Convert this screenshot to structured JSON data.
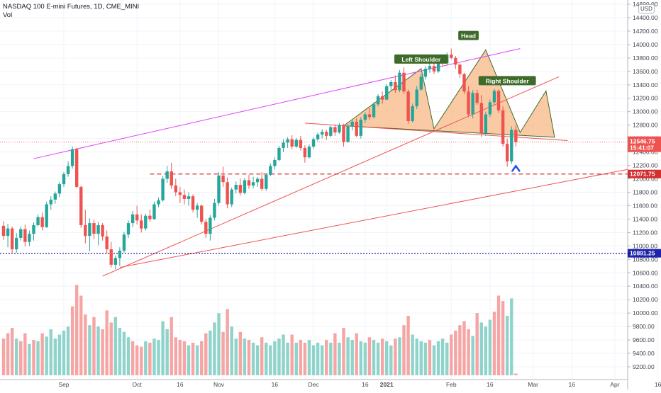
{
  "header": {
    "title": "NASDAQ 100 E-mini Futures, 1D, CME_MINI",
    "volume_label": "Vol",
    "currency": "USD"
  },
  "chart_data": {
    "type": "candlestick",
    "title": "NASDAQ 100 E-mini Futures, 1D, CME_MINI",
    "price_axis": {
      "ticks": [
        9200,
        9400,
        9600,
        9800,
        10000,
        10200,
        10400,
        10600,
        10800,
        11000,
        11200,
        11400,
        11600,
        11800,
        12000,
        12200,
        12400,
        12600,
        12800,
        13000,
        13200,
        13400,
        13600,
        13800,
        14000,
        14200,
        14400,
        14600
      ],
      "top_label": "14600.00"
    },
    "x_ticks": [
      {
        "label": "Sep",
        "bold": false
      },
      {
        "label": "Oct",
        "bold": false
      },
      {
        "label": "16",
        "bold": false
      },
      {
        "label": "Nov",
        "bold": false
      },
      {
        "label": "16",
        "bold": false
      },
      {
        "label": "Dec",
        "bold": false
      },
      {
        "label": "16",
        "bold": false
      },
      {
        "label": "2021",
        "bold": true
      },
      {
        "label": "Feb",
        "bold": false
      },
      {
        "label": "16",
        "bold": false
      },
      {
        "label": "Mar",
        "bold": false
      },
      {
        "label": "16",
        "bold": false
      },
      {
        "label": "Apr",
        "bold": false
      },
      {
        "label": "16",
        "bold": false
      }
    ],
    "price_labels": [
      {
        "text": "12546.75",
        "countdown": "15:41:07",
        "color": "#ef5350"
      },
      {
        "text": "12071.75",
        "color": "#d32f2f"
      },
      {
        "text": "10891.25",
        "color": "#1e22aa"
      }
    ],
    "levels": {
      "support_dashed": 12071.75,
      "dotted_blue": 10891.25
    },
    "pattern_labels": [
      "Left Shoulder",
      "Head",
      "Right Shoulder"
    ],
    "colors": {
      "up": "#26a69a",
      "down": "#ef5350",
      "vol_up": "#8fd3ca",
      "vol_down": "#f5a5a4",
      "pattern_fill": "#f7b886",
      "label_bg": "#3f6b2a",
      "trend_top": "#e040fb",
      "trend_red": "#ef5350"
    },
    "candles": [
      [
        11300,
        11370,
        11090,
        11150
      ],
      [
        11150,
        11330,
        10980,
        11260
      ],
      [
        11260,
        11290,
        10890,
        10950
      ],
      [
        10950,
        11190,
        10900,
        11120
      ],
      [
        11120,
        11290,
        11080,
        11250
      ],
      [
        11250,
        11320,
        10990,
        11060
      ],
      [
        11060,
        11230,
        11000,
        11180
      ],
      [
        11180,
        11350,
        11080,
        11310
      ],
      [
        11310,
        11470,
        11290,
        11430
      ],
      [
        11430,
        11500,
        11230,
        11280
      ],
      [
        11280,
        11660,
        11270,
        11620
      ],
      [
        11620,
        11740,
        11540,
        11690
      ],
      [
        11690,
        11810,
        11630,
        11780
      ],
      [
        11780,
        11950,
        11730,
        11920
      ],
      [
        11920,
        12100,
        11880,
        12070
      ],
      [
        12070,
        12260,
        12030,
        12190
      ],
      [
        12190,
        12480,
        12150,
        12440
      ],
      [
        12440,
        12460,
        11860,
        11880
      ],
      [
        11880,
        11900,
        11270,
        11310
      ],
      [
        11310,
        11540,
        11040,
        11150
      ],
      [
        11150,
        11410,
        10920,
        11340
      ],
      [
        11340,
        11390,
        11100,
        11180
      ],
      [
        11180,
        11360,
        11010,
        11310
      ],
      [
        11310,
        11340,
        11080,
        11140
      ],
      [
        11140,
        11230,
        10890,
        10950
      ],
      [
        10950,
        11060,
        10680,
        10720
      ],
      [
        10720,
        10860,
        10650,
        10820
      ],
      [
        10820,
        10980,
        10700,
        10930
      ],
      [
        10930,
        11210,
        10900,
        11170
      ],
      [
        11170,
        11380,
        11120,
        11340
      ],
      [
        11340,
        11520,
        11280,
        11470
      ],
      [
        11470,
        11600,
        11320,
        11380
      ],
      [
        11380,
        11470,
        11200,
        11260
      ],
      [
        11260,
        11480,
        11230,
        11450
      ],
      [
        11450,
        11540,
        11360,
        11400
      ],
      [
        11400,
        11660,
        11390,
        11620
      ],
      [
        11620,
        11720,
        11580,
        11680
      ],
      [
        11680,
        12040,
        11660,
        12000
      ],
      [
        12000,
        12190,
        11940,
        12110
      ],
      [
        12110,
        12240,
        11850,
        11900
      ],
      [
        11900,
        12000,
        11740,
        11800
      ],
      [
        11800,
        11880,
        11640,
        11760
      ],
      [
        11760,
        11840,
        11620,
        11700
      ],
      [
        11700,
        11800,
        11600,
        11740
      ],
      [
        11740,
        11770,
        11500,
        11540
      ],
      [
        11540,
        11640,
        11420,
        11600
      ],
      [
        11600,
        11620,
        11320,
        11360
      ],
      [
        11360,
        11400,
        11120,
        11180
      ],
      [
        11180,
        11460,
        11080,
        11420
      ],
      [
        11420,
        11700,
        11380,
        11640
      ],
      [
        11640,
        12100,
        11600,
        12050
      ],
      [
        12050,
        12180,
        11880,
        11950
      ],
      [
        11950,
        12020,
        11560,
        11620
      ],
      [
        11620,
        11870,
        11580,
        11840
      ],
      [
        11840,
        11960,
        11780,
        11910
      ],
      [
        11910,
        12000,
        11750,
        11790
      ],
      [
        11790,
        12010,
        11770,
        11980
      ],
      [
        11980,
        12060,
        11850,
        11900
      ],
      [
        11900,
        12030,
        11860,
        11950
      ],
      [
        11950,
        12030,
        11880,
        12000
      ],
      [
        12000,
        12100,
        11820,
        11850
      ],
      [
        11850,
        12080,
        11820,
        12060
      ],
      [
        12060,
        12230,
        12040,
        12190
      ],
      [
        12190,
        12320,
        12140,
        12280
      ],
      [
        12280,
        12490,
        12260,
        12460
      ],
      [
        12460,
        12590,
        12400,
        12540
      ],
      [
        12540,
        12620,
        12460,
        12590
      ],
      [
        12590,
        12650,
        12440,
        12480
      ],
      [
        12480,
        12610,
        12460,
        12580
      ],
      [
        12580,
        12640,
        12420,
        12460
      ],
      [
        12460,
        12500,
        12240,
        12320
      ],
      [
        12320,
        12510,
        12300,
        12480
      ],
      [
        12480,
        12620,
        12450,
        12590
      ],
      [
        12590,
        12690,
        12560,
        12660
      ],
      [
        12660,
        12740,
        12600,
        12700
      ],
      [
        12700,
        12730,
        12580,
        12640
      ],
      [
        12640,
        12790,
        12620,
        12770
      ],
      [
        12770,
        12810,
        12640,
        12690
      ],
      [
        12690,
        12830,
        12670,
        12800
      ],
      [
        12800,
        12820,
        12480,
        12550
      ],
      [
        12550,
        12820,
        12540,
        12780
      ],
      [
        12780,
        12880,
        12720,
        12850
      ],
      [
        12850,
        12900,
        12620,
        12640
      ],
      [
        12640,
        12920,
        12600,
        12880
      ],
      [
        12880,
        12990,
        12830,
        12960
      ],
      [
        12960,
        13050,
        12880,
        12920
      ],
      [
        12920,
        13140,
        12900,
        13110
      ],
      [
        13110,
        13260,
        13080,
        13230
      ],
      [
        13230,
        13300,
        13120,
        13180
      ],
      [
        13180,
        13410,
        13170,
        13380
      ],
      [
        13380,
        13470,
        13320,
        13440
      ],
      [
        13440,
        13540,
        13280,
        13320
      ],
      [
        13320,
        13620,
        13290,
        13580
      ],
      [
        13580,
        13660,
        13260,
        13300
      ],
      [
        13300,
        13330,
        12820,
        12860
      ],
      [
        12860,
        13120,
        12840,
        13080
      ],
      [
        13080,
        13380,
        13040,
        13330
      ],
      [
        13330,
        13560,
        13310,
        13520
      ],
      [
        13520,
        13680,
        13480,
        13640
      ],
      [
        13640,
        13720,
        13580,
        13680
      ],
      [
        13680,
        13740,
        13560,
        13600
      ],
      [
        13600,
        13780,
        13580,
        13750
      ],
      [
        13750,
        13820,
        13680,
        13720
      ],
      [
        13720,
        13880,
        13700,
        13850
      ],
      [
        13850,
        13940,
        13780,
        13800
      ],
      [
        13800,
        13830,
        13640,
        13700
      ],
      [
        13700,
        13720,
        13500,
        13560
      ],
      [
        13560,
        13580,
        13260,
        13300
      ],
      [
        13300,
        13380,
        12920,
        12960
      ],
      [
        12960,
        13320,
        12900,
        13280
      ],
      [
        13280,
        13330,
        13100,
        13130
      ],
      [
        13130,
        13250,
        12620,
        12680
      ],
      [
        12680,
        13000,
        12640,
        12960
      ],
      [
        12960,
        13180,
        12920,
        13140
      ],
      [
        13140,
        13340,
        13100,
        13310
      ],
      [
        13310,
        13330,
        12980,
        13020
      ],
      [
        13020,
        13080,
        12480,
        12520
      ],
      [
        12520,
        12600,
        12180,
        12260
      ],
      [
        12260,
        12780,
        12220,
        12730
      ],
      [
        12730,
        12790,
        12480,
        12546.75
      ]
    ],
    "volume": [
      [
        9620,
        "d"
      ],
      [
        9700,
        "d"
      ],
      [
        9780,
        "d"
      ],
      [
        9620,
        "u"
      ],
      [
        9580,
        "d"
      ],
      [
        9700,
        "d"
      ],
      [
        9540,
        "u"
      ],
      [
        9600,
        "d"
      ],
      [
        9580,
        "u"
      ],
      [
        9700,
        "d"
      ],
      [
        9650,
        "u"
      ],
      [
        9760,
        "u"
      ],
      [
        9620,
        "u"
      ],
      [
        9680,
        "u"
      ],
      [
        9740,
        "u"
      ],
      [
        9800,
        "u"
      ],
      [
        10100,
        "d"
      ],
      [
        10420,
        "d"
      ],
      [
        10260,
        "d"
      ],
      [
        9980,
        "d"
      ],
      [
        9820,
        "u"
      ],
      [
        9940,
        "d"
      ],
      [
        9800,
        "u"
      ],
      [
        9760,
        "d"
      ],
      [
        10040,
        "d"
      ],
      [
        9860,
        "d"
      ],
      [
        9940,
        "u"
      ],
      [
        9780,
        "u"
      ],
      [
        9720,
        "u"
      ],
      [
        9640,
        "u"
      ],
      [
        9580,
        "d"
      ],
      [
        9520,
        "d"
      ],
      [
        9500,
        "d"
      ],
      [
        9580,
        "u"
      ],
      [
        9560,
        "d"
      ],
      [
        9620,
        "u"
      ],
      [
        9600,
        "u"
      ],
      [
        9880,
        "u"
      ],
      [
        9760,
        "u"
      ],
      [
        9940,
        "d"
      ],
      [
        9640,
        "d"
      ],
      [
        9600,
        "d"
      ],
      [
        9580,
        "d"
      ],
      [
        9520,
        "u"
      ],
      [
        9560,
        "d"
      ],
      [
        9520,
        "u"
      ],
      [
        9580,
        "d"
      ],
      [
        9700,
        "d"
      ],
      [
        9740,
        "u"
      ],
      [
        9860,
        "u"
      ],
      [
        10000,
        "u"
      ],
      [
        9720,
        "d"
      ],
      [
        10060,
        "d"
      ],
      [
        9800,
        "u"
      ],
      [
        9620,
        "u"
      ],
      [
        9720,
        "d"
      ],
      [
        9620,
        "u"
      ],
      [
        9600,
        "d"
      ],
      [
        9560,
        "u"
      ],
      [
        9520,
        "u"
      ],
      [
        9640,
        "d"
      ],
      [
        9560,
        "u"
      ],
      [
        9520,
        "u"
      ],
      [
        9580,
        "u"
      ],
      [
        9620,
        "u"
      ],
      [
        9680,
        "u"
      ],
      [
        9560,
        "u"
      ],
      [
        9680,
        "d"
      ],
      [
        9560,
        "u"
      ],
      [
        9600,
        "d"
      ],
      [
        9560,
        "d"
      ],
      [
        9600,
        "u"
      ],
      [
        9520,
        "u"
      ],
      [
        9560,
        "u"
      ],
      [
        9520,
        "u"
      ],
      [
        9600,
        "d"
      ],
      [
        9560,
        "u"
      ],
      [
        9700,
        "d"
      ],
      [
        9560,
        "u"
      ],
      [
        9780,
        "d"
      ],
      [
        9640,
        "u"
      ],
      [
        9600,
        "u"
      ],
      [
        9700,
        "d"
      ],
      [
        9580,
        "u"
      ],
      [
        9560,
        "u"
      ],
      [
        9640,
        "d"
      ],
      [
        9600,
        "u"
      ],
      [
        9560,
        "u"
      ],
      [
        9620,
        "d"
      ],
      [
        9580,
        "u"
      ],
      [
        9520,
        "u"
      ],
      [
        9620,
        "d"
      ],
      [
        9640,
        "u"
      ],
      [
        9820,
        "d"
      ],
      [
        9960,
        "d"
      ],
      [
        9680,
        "u"
      ],
      [
        9620,
        "u"
      ],
      [
        9580,
        "u"
      ],
      [
        9560,
        "u"
      ],
      [
        9600,
        "d"
      ],
      [
        9520,
        "u"
      ],
      [
        9580,
        "u"
      ],
      [
        9620,
        "u"
      ],
      [
        9560,
        "u"
      ],
      [
        9680,
        "d"
      ],
      [
        9740,
        "d"
      ],
      [
        9820,
        "d"
      ],
      [
        9880,
        "d"
      ],
      [
        9760,
        "d"
      ],
      [
        9660,
        "u"
      ],
      [
        10000,
        "d"
      ],
      [
        9860,
        "u"
      ],
      [
        9800,
        "u"
      ],
      [
        9900,
        "u"
      ],
      [
        10020,
        "d"
      ],
      [
        10260,
        "d"
      ],
      [
        10180,
        "d"
      ],
      [
        9960,
        "u"
      ],
      [
        10220,
        "u"
      ],
      [
        9100,
        "d"
      ]
    ]
  }
}
